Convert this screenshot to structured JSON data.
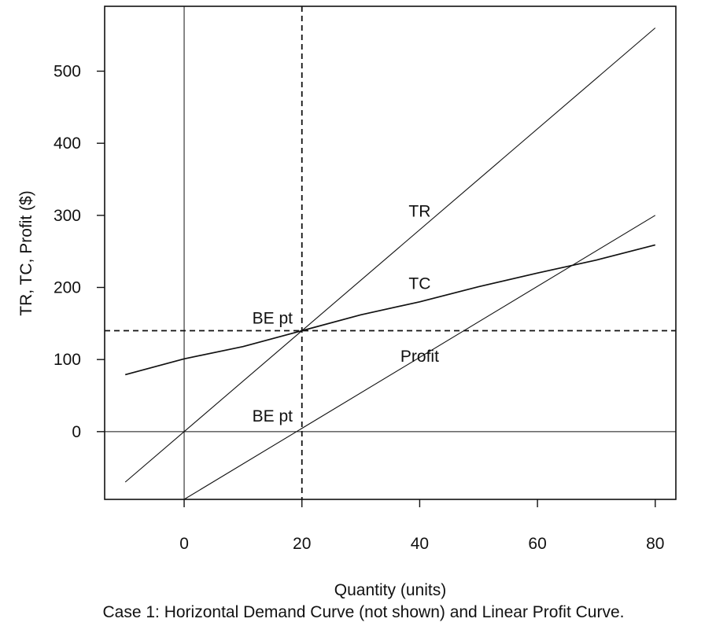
{
  "caption": "Case 1: Horizontal Demand Curve (not shown) and Linear Profit Curve.",
  "chart_data": {
    "type": "line",
    "title": "",
    "xlabel": "Quantity (units)",
    "ylabel": "TR, TC, Profit ($)",
    "xlim": [
      -13.5,
      83.5
    ],
    "ylim": [
      -94,
      590
    ],
    "xticks": [
      0,
      20,
      40,
      60,
      80
    ],
    "xtick_labels": [
      "0",
      "20",
      "40",
      "60",
      "80"
    ],
    "yticks": [
      0,
      100,
      200,
      300,
      400,
      500
    ],
    "ytick_labels": [
      "0",
      "100",
      "200",
      "300",
      "400",
      "500"
    ],
    "grid": false,
    "legend": "none",
    "series": [
      {
        "name": "TR",
        "x": [
          -10,
          80
        ],
        "y": [
          -70,
          560
        ]
      },
      {
        "name": "TC",
        "x": [
          -10,
          0,
          10,
          20,
          30,
          40,
          50,
          60,
          70,
          80
        ],
        "y": [
          79,
          101,
          118,
          140,
          162,
          180,
          201,
          220,
          238,
          259
        ]
      },
      {
        "name": "Profit",
        "x": [
          0,
          80
        ],
        "y": [
          -94,
          300
        ]
      }
    ],
    "reference_lines": [
      {
        "orientation": "vertical",
        "value": 0,
        "style": "solid"
      },
      {
        "orientation": "horizontal",
        "value": 0,
        "style": "solid"
      },
      {
        "orientation": "vertical",
        "value": 20,
        "style": "dashed"
      },
      {
        "orientation": "horizontal",
        "value": 140,
        "style": "dashed"
      }
    ],
    "annotations": [
      {
        "text": "TR",
        "x": 40,
        "y": 298
      },
      {
        "text": "TC",
        "x": 40,
        "y": 198
      },
      {
        "text": "Profit",
        "x": 40,
        "y": 97
      },
      {
        "text": "BE pt",
        "x": 15,
        "y": 150
      },
      {
        "text": "BE pt",
        "x": 15,
        "y": 14
      }
    ]
  }
}
